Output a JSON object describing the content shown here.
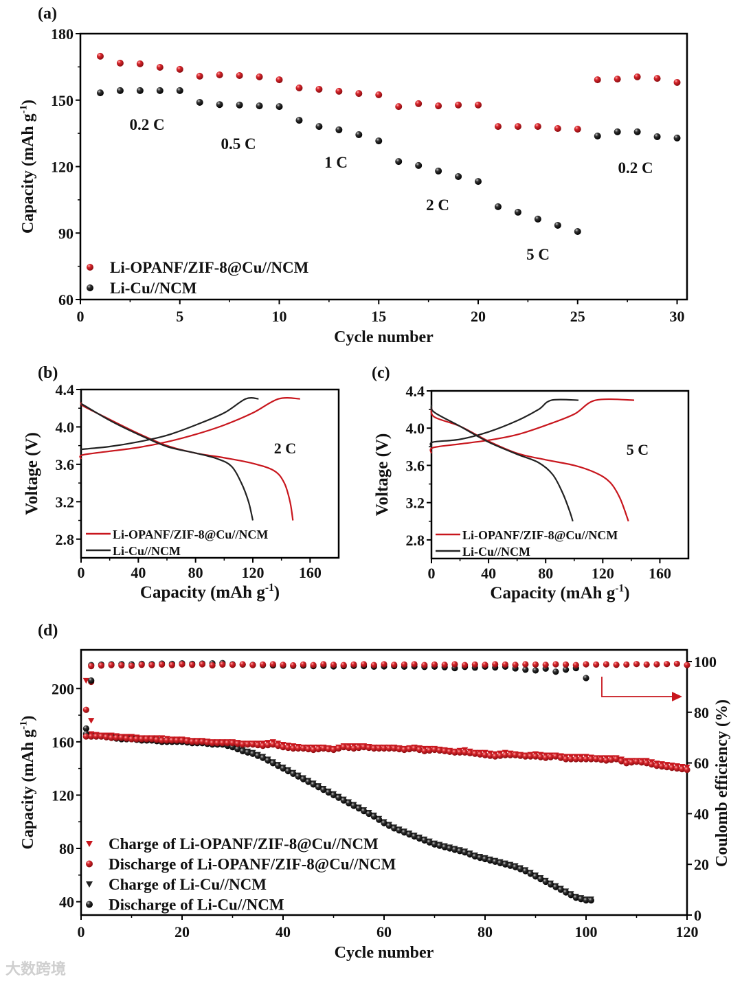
{
  "watermark": "大数跨境",
  "colors": {
    "red": "#c8161d",
    "black": "#222222"
  },
  "chart_data": [
    {
      "id": "a",
      "panel_label": "(a)",
      "type": "scatter",
      "xlabel": "Cycle number",
      "ylabel": {
        "main": "Capacity (mAh g",
        "sup": "-1",
        "end": ")"
      },
      "xlim": [
        0,
        30.5
      ],
      "ylim": [
        60,
        180
      ],
      "xticks": [
        0,
        5,
        10,
        15,
        20,
        25,
        30
      ],
      "yticks": [
        60,
        90,
        120,
        150,
        180
      ],
      "series": [
        {
          "name": "Li-OPANF/ZIF-8@Cu//NCM",
          "color": "red",
          "marker": "circle",
          "x": [
            1,
            2,
            3,
            4,
            5,
            6,
            7,
            8,
            9,
            10,
            11,
            12,
            13,
            14,
            15,
            16,
            17,
            18,
            19,
            20,
            21,
            22,
            23,
            24,
            25,
            26,
            27,
            28,
            29,
            30
          ],
          "y": [
            169.8,
            166.7,
            166.4,
            164.8,
            163.9,
            160.8,
            161.4,
            161.1,
            160.5,
            159.2,
            155.5,
            154.9,
            154.0,
            153.0,
            152.4,
            147.1,
            148.4,
            147.4,
            147.8,
            147.8,
            138.1,
            138.1,
            138.1,
            137.2,
            136.9,
            159.2,
            159.5,
            160.5,
            159.8,
            158.0
          ]
        },
        {
          "name": "Li-Cu//NCM",
          "color": "black",
          "marker": "circle",
          "x": [
            1,
            2,
            3,
            4,
            5,
            6,
            7,
            8,
            9,
            10,
            11,
            12,
            13,
            14,
            15,
            16,
            17,
            18,
            19,
            20,
            21,
            22,
            23,
            24,
            25,
            26,
            27,
            28,
            29,
            30
          ],
          "y": [
            153.3,
            154.3,
            154.3,
            154.3,
            154.3,
            149.0,
            148.0,
            147.8,
            147.4,
            147.1,
            140.9,
            138.1,
            136.6,
            134.4,
            131.6,
            122.3,
            120.5,
            118.0,
            115.5,
            113.3,
            101.9,
            99.4,
            96.3,
            93.5,
            90.7,
            133.8,
            135.7,
            135.7,
            133.5,
            132.9
          ]
        }
      ],
      "annotations": [
        "0.2 C",
        "0.5 C",
        "1 C",
        "2 C",
        "5 C",
        "0.2 C"
      ]
    },
    {
      "id": "b",
      "panel_label": "(b)",
      "type": "line",
      "xlabel": {
        "main": "Capacity (mAh g",
        "sup": "-1",
        "end": ")"
      },
      "ylabel": "Voltage (V)",
      "xlim": [
        0,
        180
      ],
      "ylim": [
        2.6,
        4.4
      ],
      "xticks": [
        0,
        40,
        80,
        120,
        160
      ],
      "yticks": [
        2.8,
        3.2,
        3.6,
        4.0,
        4.4
      ],
      "annotation": "2 C",
      "series": [
        {
          "name": "Li-OPANF/ZIF-8@Cu//NCM",
          "color": "red",
          "curve": "charge",
          "points": [
            [
              0,
              3.66
            ],
            [
              1,
              3.7
            ],
            [
              20,
              3.74
            ],
            [
              40,
              3.78
            ],
            [
              60,
              3.84
            ],
            [
              80,
              3.92
            ],
            [
              100,
              4.02
            ],
            [
              120,
              4.15
            ],
            [
              138,
              4.3
            ],
            [
              153,
              4.3
            ]
          ]
        },
        {
          "name": "Li-OPANF/ZIF-8@Cu//NCM",
          "color": "red",
          "curve": "discharge",
          "points": [
            [
              0,
              4.26
            ],
            [
              2,
              4.22
            ],
            [
              20,
              4.08
            ],
            [
              40,
              3.93
            ],
            [
              60,
              3.8
            ],
            [
              80,
              3.72
            ],
            [
              100,
              3.67
            ],
            [
              120,
              3.61
            ],
            [
              135,
              3.53
            ],
            [
              142,
              3.4
            ],
            [
              146,
              3.2
            ],
            [
              148,
              3.0
            ]
          ]
        },
        {
          "name": "Li-Cu//NCM",
          "color": "black",
          "curve": "charge",
          "points": [
            [
              0,
              3.76
            ],
            [
              20,
              3.79
            ],
            [
              40,
              3.84
            ],
            [
              60,
              3.91
            ],
            [
              80,
              4.02
            ],
            [
              100,
              4.15
            ],
            [
              115,
              4.3
            ],
            [
              124,
              4.3
            ]
          ]
        },
        {
          "name": "Li-Cu//NCM",
          "color": "black",
          "curve": "discharge",
          "points": [
            [
              0,
              4.25
            ],
            [
              20,
              4.07
            ],
            [
              40,
              3.92
            ],
            [
              60,
              3.79
            ],
            [
              80,
              3.72
            ],
            [
              95,
              3.66
            ],
            [
              105,
              3.58
            ],
            [
              112,
              3.4
            ],
            [
              117,
              3.2
            ],
            [
              120,
              3.0
            ]
          ]
        }
      ],
      "legend": [
        "Li-OPANF/ZIF-8@Cu//NCM",
        "Li-Cu//NCM"
      ]
    },
    {
      "id": "c",
      "panel_label": "(c)",
      "type": "line",
      "xlabel": {
        "main": "Capacity (mAh g",
        "sup": "-1",
        "end": ")"
      },
      "ylabel": "Voltage (V)",
      "xlim": [
        0,
        180
      ],
      "ylim": [
        2.6,
        4.4
      ],
      "xticks": [
        0,
        40,
        80,
        120,
        160
      ],
      "yticks": [
        2.8,
        3.2,
        3.6,
        4.0,
        4.4
      ],
      "annotation": "5 C",
      "series": [
        {
          "name": "Li-OPANF/ZIF-8@Cu//NCM",
          "color": "red",
          "curve": "charge",
          "points": [
            [
              0,
              3.73
            ],
            [
              1,
              3.79
            ],
            [
              20,
              3.83
            ],
            [
              40,
              3.87
            ],
            [
              60,
              3.93
            ],
            [
              80,
              4.03
            ],
            [
              100,
              4.15
            ],
            [
              115,
              4.3
            ],
            [
              142,
              4.3
            ]
          ]
        },
        {
          "name": "Li-OPANF/ZIF-8@Cu//NCM",
          "color": "red",
          "curve": "discharge",
          "points": [
            [
              0,
              4.22
            ],
            [
              2,
              4.12
            ],
            [
              20,
              4.02
            ],
            [
              40,
              3.86
            ],
            [
              60,
              3.73
            ],
            [
              80,
              3.66
            ],
            [
              100,
              3.6
            ],
            [
              115,
              3.52
            ],
            [
              125,
              3.42
            ],
            [
              132,
              3.25
            ],
            [
              138,
              3.0
            ]
          ]
        },
        {
          "name": "Li-Cu//NCM",
          "color": "black",
          "curve": "charge",
          "points": [
            [
              0,
              3.8
            ],
            [
              1,
              3.85
            ],
            [
              20,
              3.88
            ],
            [
              40,
              3.96
            ],
            [
              60,
              4.08
            ],
            [
              75,
              4.2
            ],
            [
              84,
              4.3
            ],
            [
              103,
              4.3
            ]
          ]
        },
        {
          "name": "Li-Cu//NCM",
          "color": "black",
          "curve": "discharge",
          "points": [
            [
              0,
              4.25
            ],
            [
              2,
              4.17
            ],
            [
              20,
              4.02
            ],
            [
              40,
              3.85
            ],
            [
              60,
              3.72
            ],
            [
              75,
              3.63
            ],
            [
              85,
              3.5
            ],
            [
              92,
              3.3
            ],
            [
              97,
              3.1
            ],
            [
              99,
              3.0
            ]
          ]
        }
      ],
      "legend": [
        "Li-OPANF/ZIF-8@Cu//NCM",
        "Li-Cu//NCM"
      ]
    },
    {
      "id": "d",
      "panel_label": "(d)",
      "type": "scatter",
      "xlabel": "Cycle number",
      "ylabel": {
        "main": "Capacity (mAh g",
        "sup": "-1",
        "end": ")"
      },
      "y2label": "Coulomb efficiency (%)",
      "xlim": [
        0,
        120
      ],
      "ylim": [
        30,
        229
      ],
      "y2lim": [
        0,
        104.6
      ],
      "xticks": [
        0,
        20,
        40,
        60,
        80,
        100,
        120
      ],
      "yticks": [
        40,
        80,
        120,
        160,
        200
      ],
      "y2ticks": [
        0,
        20,
        40,
        60,
        80,
        100
      ],
      "series": [
        {
          "name": "Charge of Li-OPANF/ZIF-8@Cu//NCM",
          "color": "red",
          "marker": "triangle-down",
          "axis": "left",
          "x_start": 2,
          "x_step": 2,
          "y": [
            166,
            165,
            165,
            164,
            164,
            163,
            163,
            163,
            162,
            162,
            161,
            161,
            160,
            160,
            160,
            159,
            159,
            159,
            160,
            158,
            157,
            156,
            156,
            156,
            155,
            157,
            157,
            157,
            156,
            156,
            156,
            155,
            156,
            155,
            155,
            154,
            153,
            154,
            152,
            152,
            151,
            152,
            151,
            150,
            151,
            150,
            150,
            149,
            149,
            149,
            148,
            148,
            148,
            146,
            146,
            146,
            144,
            143,
            142,
            141
          ]
        },
        {
          "name": "Discharge of Li-OPANF/ZIF-8@Cu//NCM",
          "color": "red",
          "marker": "circle",
          "axis": "left",
          "x_start": 2,
          "x_step": 2,
          "y": [
            164,
            164,
            163,
            163,
            162,
            162,
            162,
            161,
            161,
            161,
            160,
            160,
            159,
            159,
            159,
            158,
            158,
            157,
            158,
            156,
            155,
            155,
            154,
            155,
            154,
            156,
            155,
            156,
            155,
            155,
            155,
            154,
            155,
            153,
            154,
            153,
            152,
            152,
            151,
            150,
            149,
            150,
            150,
            149,
            149,
            148,
            149,
            147,
            147,
            147,
            147,
            146,
            147,
            144,
            145,
            144,
            142,
            141,
            140,
            139
          ]
        },
        {
          "name": "Charge of Li-Cu//NCM",
          "color": "black",
          "marker": "triangle-down",
          "axis": "left",
          "x_start": 2,
          "x_step": 2,
          "y": [
            165,
            165,
            164,
            163,
            163,
            162,
            162,
            161,
            161,
            161,
            160,
            160,
            159,
            159,
            157,
            154,
            152,
            149,
            145,
            141,
            137,
            133,
            129,
            125,
            121,
            117,
            113,
            109,
            105,
            100,
            96,
            93,
            90,
            87,
            84,
            82,
            80,
            78,
            75,
            73,
            71,
            69,
            67,
            64,
            60,
            56,
            52,
            48,
            44,
            42
          ]
        },
        {
          "name": "Discharge of Li-Cu//NCM",
          "color": "black",
          "marker": "circle",
          "axis": "left",
          "x_start": 2,
          "x_step": 2,
          "y": [
            164,
            164,
            163,
            162,
            162,
            161,
            161,
            160,
            160,
            160,
            159,
            159,
            158,
            158,
            156,
            153,
            151,
            148,
            144,
            140,
            136,
            132,
            128,
            124,
            120,
            116,
            112,
            108,
            104,
            99,
            95,
            92,
            89,
            86,
            83,
            81,
            79,
            77,
            74,
            72,
            70,
            68,
            66,
            63,
            59,
            55,
            51,
            47,
            43,
            41
          ]
        },
        {
          "name": "Coulombic efficiency of Li-Cu//NCM",
          "color": "black",
          "marker": "circle",
          "axis": "right",
          "x_start": 2,
          "x_step": 2,
          "y": [
            98.6,
            98.8,
            98.9,
            99.0,
            98.9,
            99.1,
            99.0,
            99.2,
            99.1,
            99.3,
            99.1,
            99.2,
            99.3,
            99.4,
            98.9,
            98.8,
            98.7,
            98.6,
            98.5,
            98.4,
            98.3,
            98.4,
            98.2,
            98.3,
            98.1,
            98.2,
            98.3,
            98.2,
            98.0,
            98.1,
            98.2,
            98.0,
            98.1,
            97.9,
            98.0,
            97.8,
            97.4,
            97.9,
            97.6,
            98.0,
            97.7,
            98.0,
            97.3,
            96.8,
            96.5,
            97.2,
            96.0,
            96.8,
            97.4,
            93.5
          ]
        },
        {
          "name": "Coulombic efficiency of Li-OPANF/ZIF-8@Cu//NCM",
          "color": "red",
          "marker": "circle",
          "axis": "right",
          "x_start": 2,
          "x_step": 2,
          "y": [
            98.2,
            98.4,
            98.6,
            98.5,
            98.3,
            98.7,
            98.6,
            98.8,
            98.6,
            98.9,
            98.7,
            98.9,
            98.5,
            98.8,
            98.7,
            98.9,
            98.6,
            98.8,
            98.9,
            98.7,
            98.5,
            98.8,
            98.6,
            98.9,
            98.7,
            98.6,
            98.8,
            98.9,
            98.6,
            98.9,
            98.7,
            98.8,
            98.9,
            98.6,
            98.8,
            98.7,
            98.9,
            98.6,
            98.8,
            98.7,
            98.9,
            98.8,
            98.7,
            98.9,
            98.8,
            98.7,
            98.9,
            98.8,
            98.6,
            98.9,
            98.8,
            98.9,
            98.7,
            98.8,
            99.0,
            98.8,
            98.9,
            99.0,
            99.1,
            98.6
          ]
        }
      ],
      "first_cycle_points": [
        {
          "color": "red",
          "marker": "triangle-down",
          "axis": "left",
          "x": 1,
          "y": 206
        },
        {
          "color": "red",
          "marker": "circle",
          "axis": "left",
          "x": 1,
          "y": 184
        },
        {
          "color": "red",
          "marker": "triangle-down",
          "axis": "left",
          "x": 2,
          "y": 176
        },
        {
          "color": "red",
          "marker": "circle",
          "axis": "right",
          "x": 2,
          "y": 92
        },
        {
          "color": "black",
          "marker": "circle",
          "axis": "right",
          "x": 2,
          "y": 92.5
        },
        {
          "color": "black",
          "marker": "circle",
          "axis": "left",
          "x": 1,
          "y": 170
        },
        {
          "color": "black",
          "marker": "circle",
          "axis": "left",
          "x": 1,
          "y": 166
        },
        {
          "color": "red",
          "marker": "circle",
          "axis": "left",
          "x": 1,
          "y": 164
        }
      ],
      "legend": [
        "Charge of Li-OPANF/ZIF-8@Cu//NCM",
        "Discharge of Li-OPANF/ZIF-8@Cu//NCM",
        "Charge of Li-Cu//NCM",
        "Discharge of Li-Cu//NCM"
      ]
    }
  ]
}
